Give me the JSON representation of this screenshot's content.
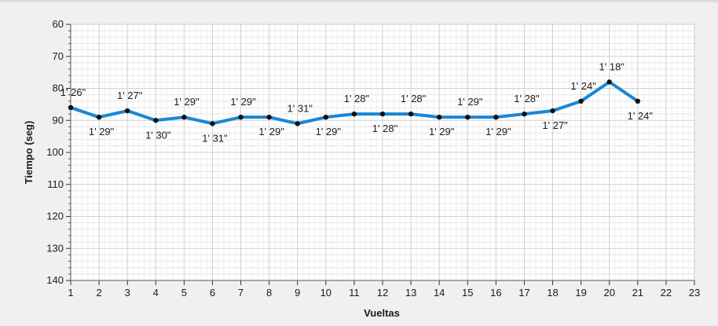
{
  "chart_data": {
    "type": "line",
    "xlabel": "Vueltas",
    "ylabel": "Tiempo (seg)",
    "xlim": [
      1,
      23
    ],
    "ylim": [
      60,
      140
    ],
    "y_inverted": true,
    "x_ticks": [
      1,
      2,
      3,
      4,
      5,
      6,
      7,
      8,
      9,
      10,
      11,
      12,
      13,
      14,
      15,
      16,
      17,
      18,
      19,
      20,
      21,
      22,
      23
    ],
    "y_ticks": [
      60,
      70,
      80,
      90,
      100,
      110,
      120,
      130,
      140
    ],
    "grid": true,
    "line_color": "#1a86d6",
    "series": [
      {
        "x": [
          1,
          2,
          3,
          4,
          5,
          6,
          7,
          8,
          9,
          10,
          11,
          12,
          13,
          14,
          15,
          16,
          17,
          18,
          19,
          20,
          21
        ],
        "values": [
          86,
          89,
          87,
          90,
          89,
          91,
          89,
          89,
          91,
          89,
          88,
          88,
          88,
          89,
          89,
          89,
          88,
          87,
          84,
          78,
          84
        ],
        "labels": [
          "1' 26\"",
          "1' 29\"",
          "1' 27\"",
          "1' 30\"",
          "1' 29\"",
          "1' 31\"",
          "1' 29\"",
          "1' 29\"",
          "1' 31\"",
          "1' 29\"",
          "1' 28\"",
          "1' 28\"",
          "1' 28\"",
          "1' 29\"",
          "1' 29\"",
          "1' 29\"",
          "1' 28\"",
          "1' 27\"",
          "1' 24\"",
          "1' 18\"",
          "1' 24\""
        ],
        "label_position": [
          "above",
          "below",
          "above",
          "below",
          "above",
          "below",
          "above",
          "below",
          "above",
          "below",
          "above",
          "below",
          "above",
          "below",
          "above",
          "below",
          "above",
          "below",
          "above",
          "above",
          "below"
        ]
      }
    ]
  }
}
